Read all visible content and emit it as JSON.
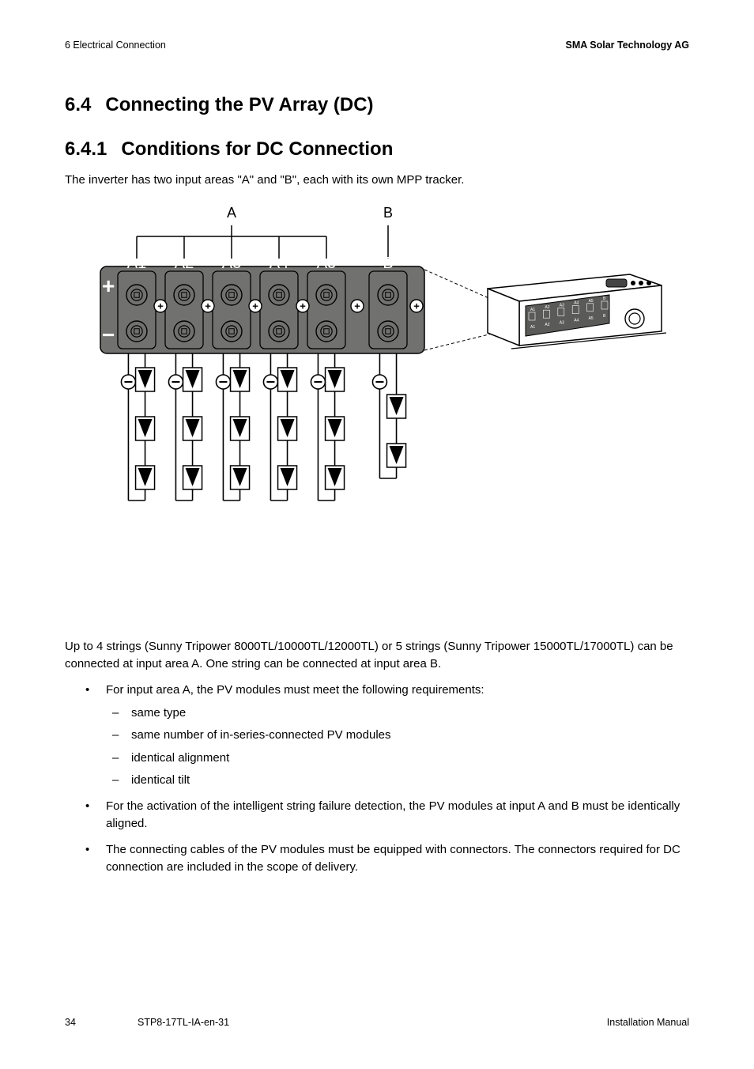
{
  "header": {
    "left": "6  Electrical Connection",
    "right": "SMA Solar Technology AG"
  },
  "section_a": {
    "number": "6.4",
    "title": "Connecting the PV Array (DC)"
  },
  "section_b": {
    "number": "6.4.1",
    "title": "Conditions for DC Connection"
  },
  "intro_para": "The inverter has two input areas \"A\" and \"B\", each with its own MPP tracker.",
  "diagram": {
    "top_labels": [
      "A",
      "B"
    ],
    "slot_labels": [
      "A1",
      "A2",
      "A3",
      "A4",
      "A5",
      "B"
    ],
    "mini_slot_labels": [
      "A1",
      "A2",
      "A3",
      "A4",
      "A5",
      "B"
    ],
    "plus_glyph": "+",
    "minus_glyph": "−",
    "colors": {
      "panel_bg": "#71716f",
      "line": "#000000",
      "white": "#ffffff"
    },
    "strings_per_A_slot": 3,
    "strings_for_B_slot": 2,
    "font": {
      "slot_label_size": 20,
      "top_label_size": 18,
      "sign_size": 28
    }
  },
  "para2": "Up to 4 strings (Sunny Tripower 8000TL/10000TL/12000TL) or 5 strings (Sunny Tripower 15000TL/17000TL) can be connected at input area A. One string can be connected at input area B.",
  "bullets": [
    {
      "text": "For input area A, the PV modules must meet the following requirements:",
      "sub": [
        "same type",
        "same number of in-series-connected PV modules",
        "identical alignment",
        "identical tilt"
      ]
    },
    {
      "text": "For the activation of the intelligent string failure detection, the PV modules at input A and B must be identically aligned.",
      "sub": []
    },
    {
      "text": "The connecting cables of the PV modules must be equipped with connectors. The connectors required for DC connection are included in the scope of delivery.",
      "sub": []
    }
  ],
  "footer": {
    "page": "34",
    "doc": "STP8-17TL-IA-en-31",
    "right": "Installation Manual"
  }
}
